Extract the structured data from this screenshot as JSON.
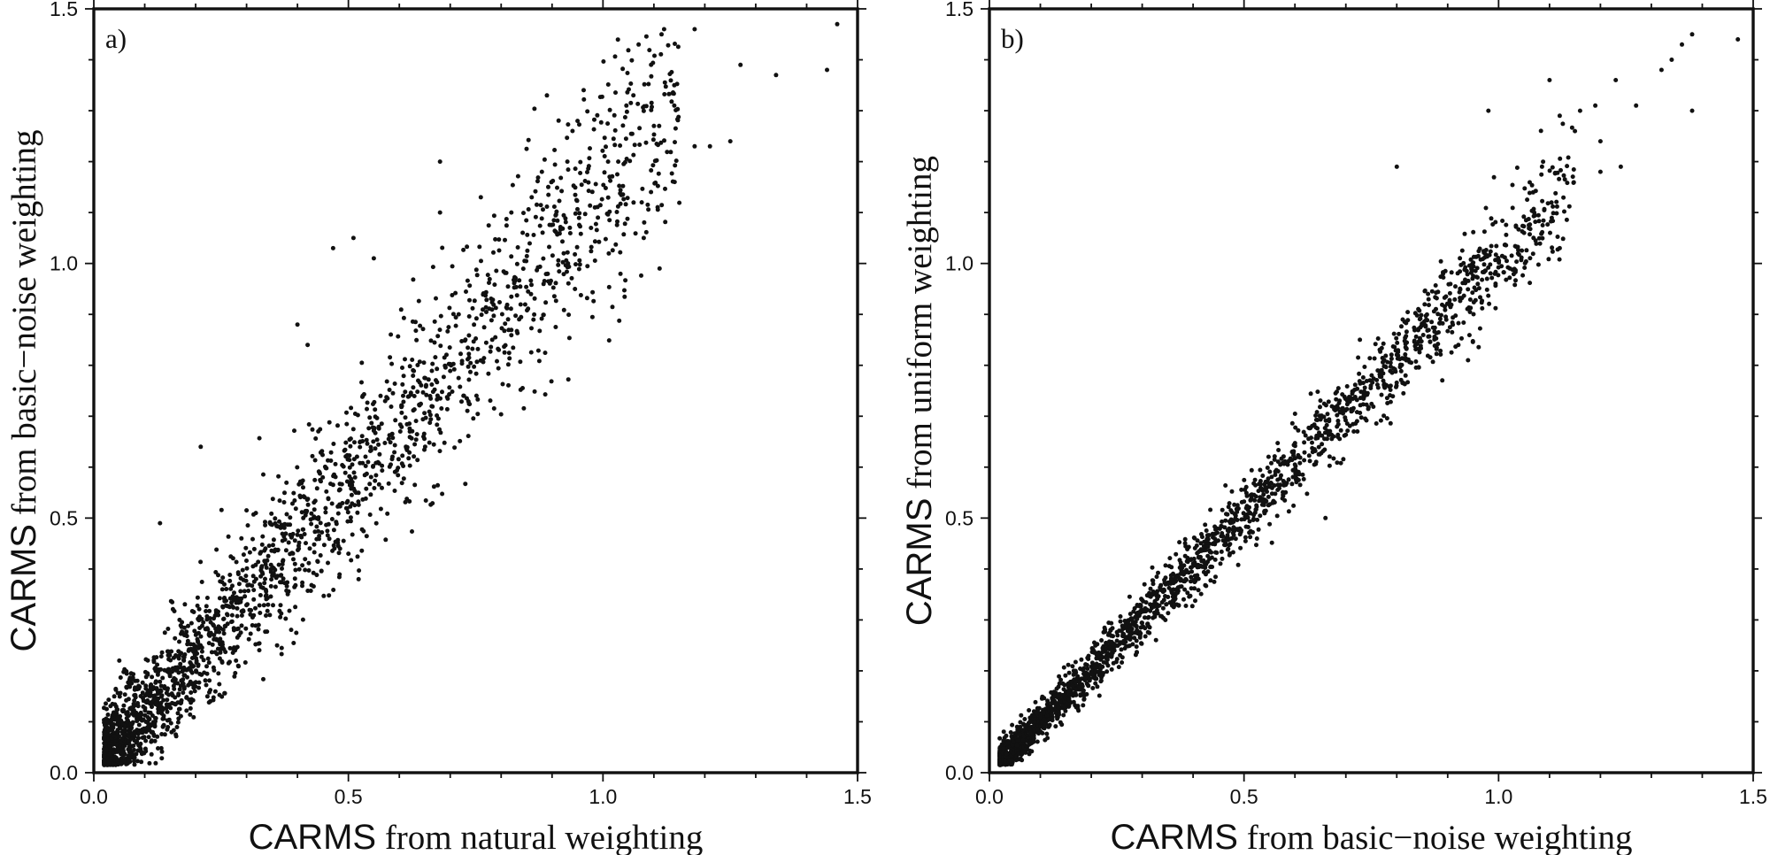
{
  "chart_data": [
    {
      "type": "scatter",
      "panel_label": "a)",
      "xlabel_acronym": "CARMS",
      "xlabel_rest": " from natural weighting",
      "ylabel_acronym": "CARMS",
      "ylabel_rest": " from basic−noise weighting",
      "xlim": [
        0.0,
        1.5
      ],
      "ylim": [
        0.0,
        1.5
      ],
      "xticks": [
        "0.0",
        "0.5",
        "1.0",
        "1.5"
      ],
      "yticks": [
        "0.0",
        "0.5",
        "1.0",
        "1.5"
      ],
      "generated_cloud": {
        "count": 2300,
        "seed": 11,
        "slope": 1.08,
        "spread": 0.045,
        "spread_scale": 0.3,
        "upper_bias": 0.08,
        "max_x": 1.13
      },
      "points": [
        [
          0.13,
          0.49
        ],
        [
          0.21,
          0.64
        ],
        [
          0.47,
          1.03
        ],
        [
          0.51,
          1.05
        ],
        [
          0.55,
          1.01
        ],
        [
          0.68,
          1.2
        ],
        [
          0.68,
          1.1
        ],
        [
          0.89,
          1.33
        ],
        [
          0.95,
          1.28
        ],
        [
          1.03,
          1.2
        ],
        [
          1.07,
          1.43
        ],
        [
          1.1,
          1.27
        ],
        [
          1.12,
          1.46
        ],
        [
          1.14,
          1.35
        ],
        [
          1.14,
          1.31
        ],
        [
          1.18,
          1.46
        ],
        [
          1.18,
          1.23
        ],
        [
          1.21,
          1.23
        ],
        [
          1.25,
          1.24
        ],
        [
          1.27,
          1.39
        ],
        [
          1.34,
          1.37
        ],
        [
          1.44,
          1.38
        ],
        [
          1.46,
          1.47
        ],
        [
          0.52,
          0.38
        ],
        [
          0.5,
          0.43
        ],
        [
          0.36,
          0.25
        ],
        [
          0.29,
          0.46
        ],
        [
          0.4,
          0.88
        ],
        [
          0.42,
          0.84
        ],
        [
          0.99,
          1.09
        ],
        [
          1.08,
          1.05
        ],
        [
          0.93,
          1.2
        ],
        [
          1.01,
          1.2
        ],
        [
          0.76,
          1.13
        ],
        [
          0.82,
          1.1
        ],
        [
          0.86,
          1.13
        ],
        [
          0.88,
          1.18
        ],
        [
          0.05,
          0.22
        ]
      ]
    },
    {
      "type": "scatter",
      "panel_label": "b)",
      "xlabel_acronym": "CARMS",
      "xlabel_rest": " from basic−noise weighting",
      "ylabel_acronym": "CARMS",
      "ylabel_rest": " from uniform weighting",
      "xlim": [
        0.0,
        1.5
      ],
      "ylim": [
        0.0,
        1.5
      ],
      "xticks": [
        "0.0",
        "0.5",
        "1.0",
        "1.5"
      ],
      "yticks": [
        "0.0",
        "0.5",
        "1.0",
        "1.5"
      ],
      "generated_cloud": {
        "count": 2300,
        "seed": 29,
        "slope": 1.0,
        "spread": 0.016,
        "spread_scale": 0.16,
        "upper_bias": 0.015,
        "max_x": 1.13
      },
      "points": [
        [
          0.8,
          1.19
        ],
        [
          0.66,
          0.5
        ],
        [
          0.94,
          0.81
        ],
        [
          0.98,
          1.3
        ],
        [
          1.1,
          1.36
        ],
        [
          1.12,
          1.29
        ],
        [
          1.16,
          1.3
        ],
        [
          1.19,
          1.31
        ],
        [
          1.2,
          1.24
        ],
        [
          1.2,
          1.18
        ],
        [
          1.23,
          1.36
        ],
        [
          1.24,
          1.19
        ],
        [
          1.27,
          1.31
        ],
        [
          1.32,
          1.38
        ],
        [
          1.34,
          1.4
        ],
        [
          1.36,
          1.43
        ],
        [
          1.38,
          1.45
        ],
        [
          1.38,
          1.3
        ],
        [
          1.47,
          1.44
        ],
        [
          1.15,
          1.26
        ],
        [
          1.07,
          1.1
        ],
        [
          1.12,
          1.03
        ],
        [
          1.05,
          1.06
        ]
      ]
    }
  ]
}
